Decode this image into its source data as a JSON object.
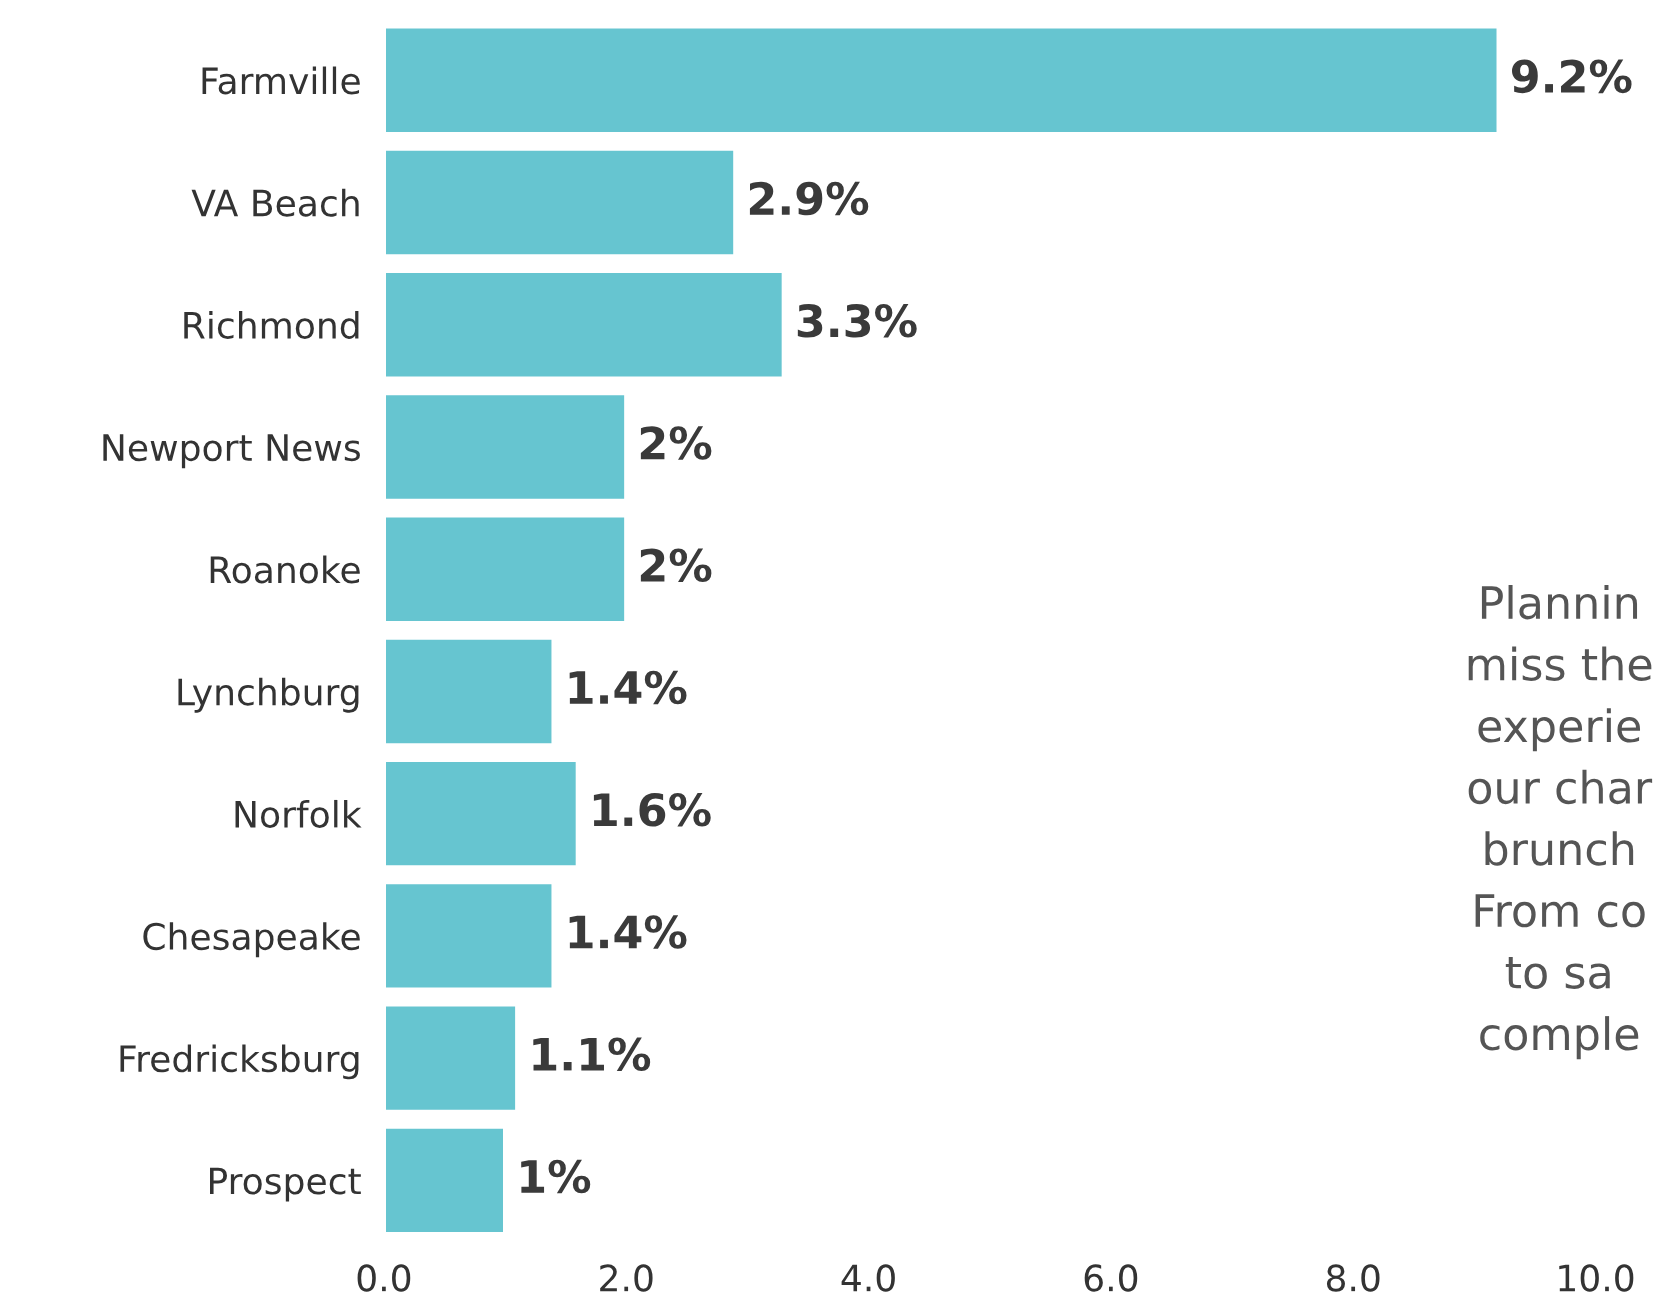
{
  "chart_data": {
    "type": "bar",
    "orientation": "horizontal",
    "categories": [
      "Farmville",
      "VA Beach",
      "Richmond",
      "Newport News",
      "Roanoke",
      "Lynchburg",
      "Norfolk",
      "Chesapeake",
      "Fredricksburg",
      "Prospect"
    ],
    "values": [
      9.2,
      2.9,
      3.3,
      2,
      2,
      1.4,
      1.6,
      1.4,
      1.1,
      1
    ],
    "value_labels": [
      "9.2%",
      "2.9%",
      "3.3%",
      "2%",
      "2%",
      "1.4%",
      "1.6%",
      "1.4%",
      "1.1%",
      "1%"
    ],
    "color": "#66c5d0",
    "xlim": [
      0,
      10
    ],
    "xticks": [
      {
        "value": 0,
        "label": "0.0"
      },
      {
        "value": 2,
        "label": "2.0"
      },
      {
        "value": 4,
        "label": "4.0"
      },
      {
        "value": 6,
        "label": "6.0"
      },
      {
        "value": 8,
        "label": "8.0"
      },
      {
        "value": 10,
        "label": "10.0"
      }
    ],
    "grid": false,
    "legend": false,
    "annotations": [
      "Plannin\nmiss the\nexperie\nour char\nbrunch\nFrom co\nto sa\ncomple"
    ]
  }
}
